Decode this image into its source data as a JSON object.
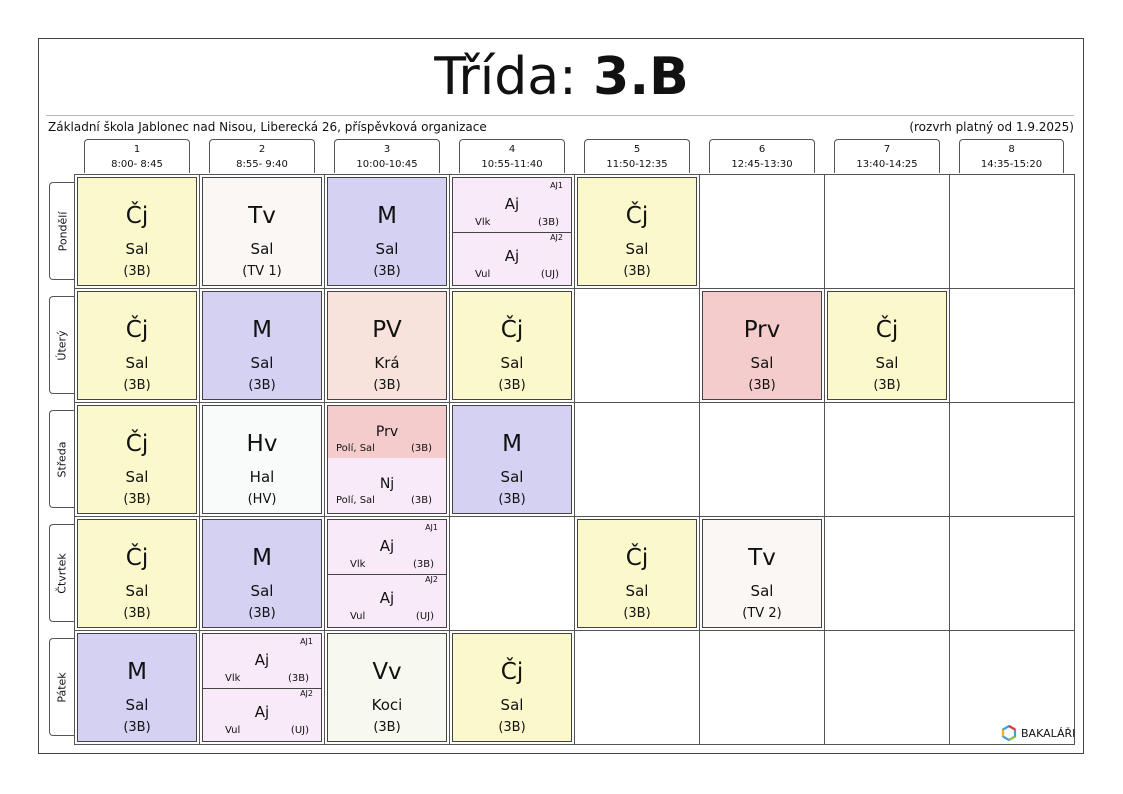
{
  "header": {
    "title_prefix": "Třída:",
    "class_name": "3.B",
    "school": "Základní škola Jablonec nad Nisou, Liberecká 26, příspěvková organizace",
    "validity": "(rozvrh platný od 1.9.2025)"
  },
  "periods": [
    {
      "num": "1",
      "time": "8:00- 8:45"
    },
    {
      "num": "2",
      "time": "8:55- 9:40"
    },
    {
      "num": "3",
      "time": "10:00-10:45"
    },
    {
      "num": "4",
      "time": "10:55-11:40"
    },
    {
      "num": "5",
      "time": "11:50-12:35"
    },
    {
      "num": "6",
      "time": "12:45-13:30"
    },
    {
      "num": "7",
      "time": "13:40-14:25"
    },
    {
      "num": "8",
      "time": "14:35-15:20"
    }
  ],
  "days": [
    "Pondělí",
    "Úterý",
    "Středa",
    "Čtvrtek",
    "Pátek"
  ],
  "colors": {
    "cj": "#fbf9cc",
    "tv": "#faf7f4",
    "m": "#d4d1f3",
    "aj": "#f8eaf8",
    "pv": "#f7e2dc",
    "prv": "#f5cccc",
    "hv": "#f8fbf9",
    "nj": "#f8eaf8",
    "vv": "#f7f9ee"
  },
  "lessons": {
    "mon": {
      "p1": {
        "subject": "Čj",
        "teacher": "Sal",
        "room": "(3B)"
      },
      "p2": {
        "subject": "Tv",
        "teacher": "Sal",
        "room": "(TV 1)"
      },
      "p3": {
        "subject": "M",
        "teacher": "Sal",
        "room": "(3B)"
      },
      "p4": {
        "a": {
          "group": "AJ1",
          "subject": "Aj",
          "teacher": "Vlk",
          "room": "(3B)"
        },
        "b": {
          "group": "AJ2",
          "subject": "Aj",
          "teacher": "Vul",
          "room": "(UJ)"
        }
      },
      "p5": {
        "subject": "Čj",
        "teacher": "Sal",
        "room": "(3B)"
      }
    },
    "tue": {
      "p1": {
        "subject": "Čj",
        "teacher": "Sal",
        "room": "(3B)"
      },
      "p2": {
        "subject": "M",
        "teacher": "Sal",
        "room": "(3B)"
      },
      "p3": {
        "subject": "PV",
        "teacher": "Krá",
        "room": "(3B)"
      },
      "p4": {
        "subject": "Čj",
        "teacher": "Sal",
        "room": "(3B)"
      },
      "p6": {
        "subject": "Prv",
        "teacher": "Sal",
        "room": "(3B)"
      },
      "p7": {
        "subject": "Čj",
        "teacher": "Sal",
        "room": "(3B)"
      }
    },
    "wed": {
      "p1": {
        "subject": "Čj",
        "teacher": "Sal",
        "room": "(3B)"
      },
      "p2": {
        "subject": "Hv",
        "teacher": "Hal",
        "room": "(HV)"
      },
      "p3": {
        "a": {
          "subject": "Prv",
          "teacher": "Polí, Sal",
          "room": "(3B)"
        },
        "b": {
          "subject": "Nj",
          "teacher": "Polí, Sal",
          "room": "(3B)"
        }
      },
      "p4": {
        "subject": "M",
        "teacher": "Sal",
        "room": "(3B)"
      }
    },
    "thu": {
      "p1": {
        "subject": "Čj",
        "teacher": "Sal",
        "room": "(3B)"
      },
      "p2": {
        "subject": "M",
        "teacher": "Sal",
        "room": "(3B)"
      },
      "p3": {
        "a": {
          "group": "AJ1",
          "subject": "Aj",
          "teacher": "Vlk",
          "room": "(3B)"
        },
        "b": {
          "group": "AJ2",
          "subject": "Aj",
          "teacher": "Vul",
          "room": "(UJ)"
        }
      },
      "p5": {
        "subject": "Čj",
        "teacher": "Sal",
        "room": "(3B)"
      },
      "p6": {
        "subject": "Tv",
        "teacher": "Sal",
        "room": "(TV 2)"
      }
    },
    "fri": {
      "p1": {
        "subject": "M",
        "teacher": "Sal",
        "room": "(3B)"
      },
      "p2": {
        "a": {
          "group": "AJ1",
          "subject": "Aj",
          "teacher": "Vlk",
          "room": "(3B)"
        },
        "b": {
          "group": "AJ2",
          "subject": "Aj",
          "teacher": "Vul",
          "room": "(UJ)"
        }
      },
      "p3": {
        "subject": "Vv",
        "teacher": "Koci",
        "room": "(3B)"
      },
      "p4": {
        "subject": "Čj",
        "teacher": "Sal",
        "room": "(3B)"
      }
    }
  },
  "footer": {
    "logo_text": "BAKALÁŘI",
    "logo_icon": "bakalari-hexagon-logo"
  }
}
